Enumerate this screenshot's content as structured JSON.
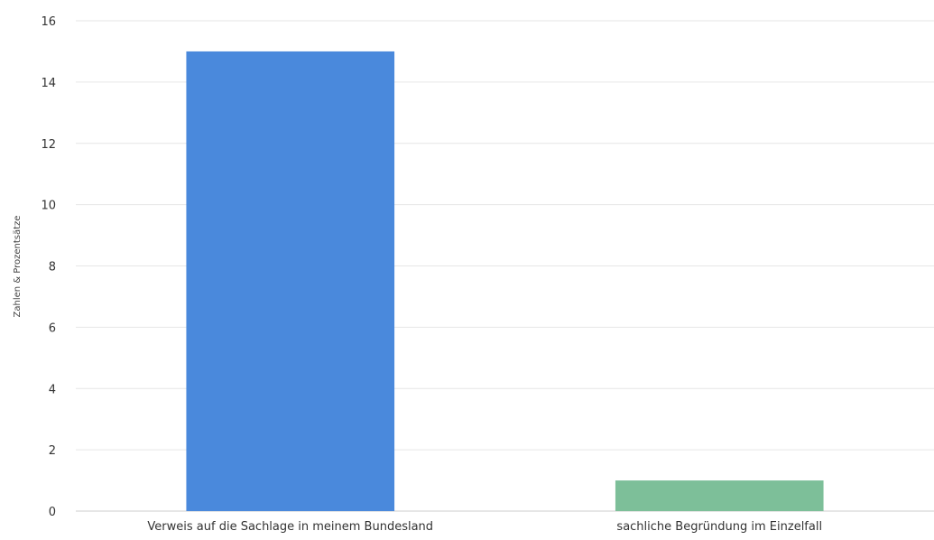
{
  "chart_data": {
    "type": "bar",
    "title": "",
    "xlabel": "",
    "ylabel": "Zahlen & Prozentsätze",
    "categories": [
      "Verweis auf die Sachlage in meinem Bundesland",
      "sachliche Begründung im Einzelfall"
    ],
    "values": [
      15,
      1
    ],
    "colors": [
      "#4a89dc",
      "#7dbf99"
    ],
    "ylim": [
      0,
      16
    ],
    "yticks": [
      0,
      2,
      4,
      6,
      8,
      10,
      12,
      14,
      16
    ],
    "grid": true,
    "legend": "none"
  }
}
